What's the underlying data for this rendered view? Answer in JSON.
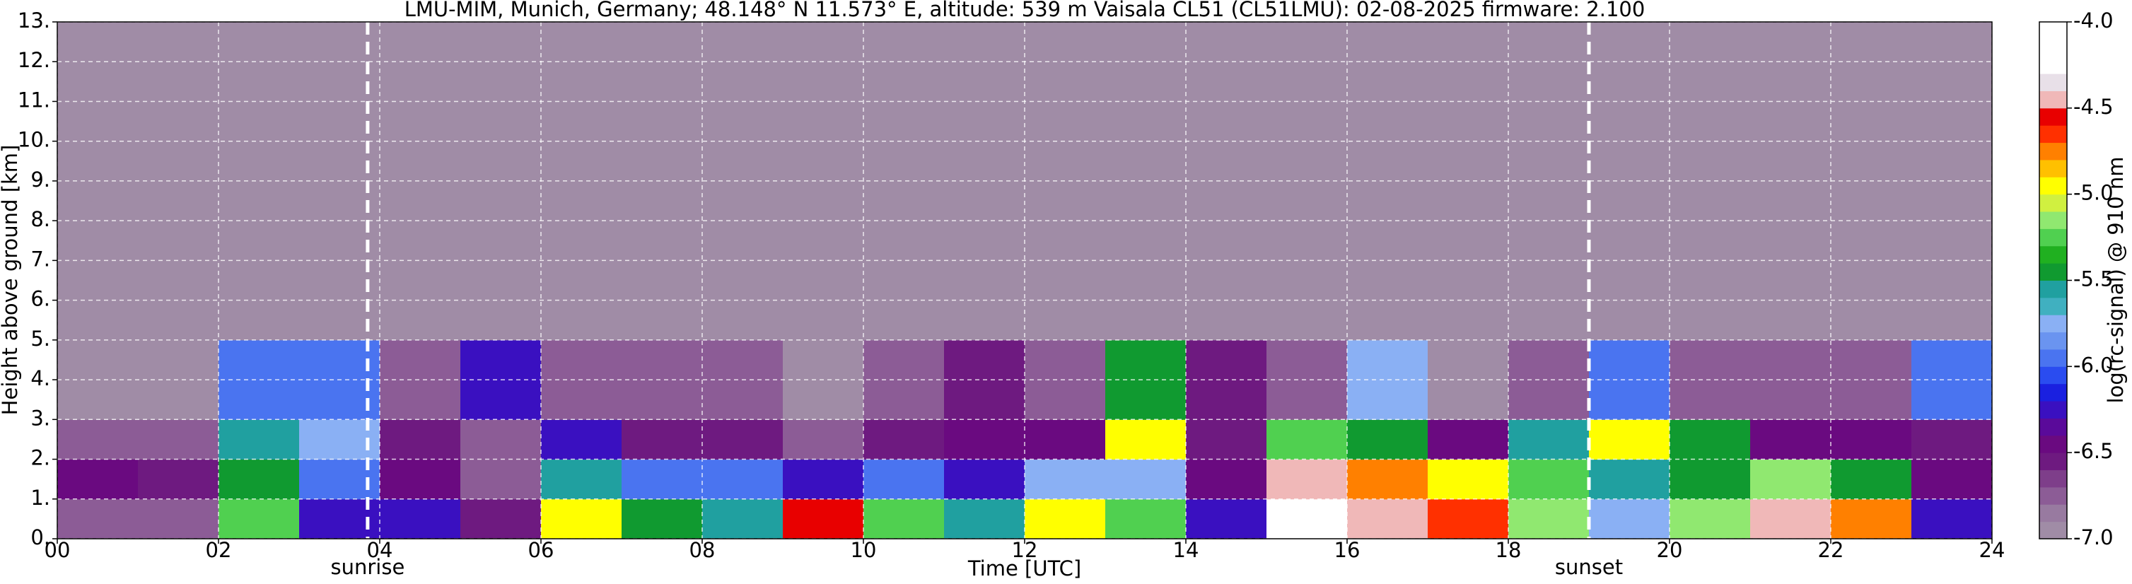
{
  "chart_data": {
    "type": "heatmap",
    "title": "LMU-MIM, Munich, Germany; 48.148° N 11.573° E, altitude: 539 m    Vaisala CL51 (CL51LMU): 02-08-2025    firmware: 2.100",
    "x_label": "Time [UTC]",
    "y_label": "Height above ground [km]",
    "colorbar_label": "log(rc-signal) @ 910 nm",
    "x": [
      0,
      1,
      2,
      3,
      4,
      5,
      6,
      7,
      8,
      9,
      10,
      11,
      12,
      13,
      14,
      15,
      16,
      17,
      18,
      19,
      20,
      21,
      22,
      23,
      24
    ],
    "y": [
      0,
      1,
      2,
      3,
      5,
      13
    ],
    "z": [
      [
        -6.7,
        -6.7,
        -5.3,
        -6.3,
        -6.3,
        -6.6,
        -5.0,
        -5.5,
        -5.6,
        -4.6,
        -5.3,
        -5.6,
        -4.9,
        -5.3,
        -6.3,
        -4.3,
        -4.4,
        -4.7,
        -5.2,
        -5.8,
        -5.2,
        -4.5,
        -4.8,
        -6.2
      ],
      [
        -6.5,
        -6.6,
        -5.5,
        -6.0,
        -6.5,
        -6.8,
        -5.6,
        -6.0,
        -6.0,
        -6.2,
        -6.0,
        -6.2,
        -5.8,
        -5.8,
        -6.5,
        -4.5,
        -4.8,
        -5.0,
        -5.3,
        -5.6,
        -5.5,
        -5.2,
        -5.5,
        -6.4
      ],
      [
        -6.8,
        -6.8,
        -5.6,
        -5.8,
        -6.6,
        -6.7,
        -6.2,
        -6.6,
        -6.6,
        -6.7,
        -6.6,
        -6.5,
        -6.4,
        -5.0,
        -6.6,
        -5.3,
        -5.4,
        -6.5,
        -5.6,
        -4.9,
        -5.4,
        -6.4,
        -6.5,
        -6.6
      ],
      [
        -6.9,
        -6.9,
        -6.0,
        -6.0,
        -6.7,
        -6.2,
        -6.8,
        -6.8,
        -6.8,
        -6.9,
        -6.8,
        -6.6,
        -6.8,
        -5.5,
        -6.6,
        -6.8,
        -5.8,
        -6.9,
        -6.8,
        -6.0,
        -6.7,
        -6.8,
        -6.8,
        -6.0
      ],
      [
        -6.9,
        -6.9,
        -6.9,
        -6.9,
        -6.9,
        -6.9,
        -6.9,
        -6.9,
        -6.9,
        -7.0,
        -6.9,
        -7.0,
        -6.9,
        -6.9,
        -7.0,
        -6.9,
        -6.9,
        -7.0,
        -6.9,
        -6.9,
        -6.9,
        -6.9,
        -7.0,
        -6.9
      ]
    ],
    "xlim": [
      0,
      24
    ],
    "xticks": [
      {
        "value": 0,
        "label": "00"
      },
      {
        "value": 2,
        "label": "02"
      },
      {
        "value": 4,
        "label": "04"
      },
      {
        "value": 6,
        "label": "06"
      },
      {
        "value": 8,
        "label": "08"
      },
      {
        "value": 10,
        "label": "10"
      },
      {
        "value": 12,
        "label": "12"
      },
      {
        "value": 14,
        "label": "14"
      },
      {
        "value": 16,
        "label": "16"
      },
      {
        "value": 18,
        "label": "18"
      },
      {
        "value": 20,
        "label": "20"
      },
      {
        "value": 22,
        "label": "22"
      },
      {
        "value": 24,
        "label": "24"
      }
    ],
    "ylim": [
      0,
      13
    ],
    "yticks": [
      {
        "value": 0,
        "label": "0."
      },
      {
        "value": 1,
        "label": "1."
      },
      {
        "value": 2,
        "label": "2."
      },
      {
        "value": 3,
        "label": "3."
      },
      {
        "value": 4,
        "label": "4."
      },
      {
        "value": 5,
        "label": "5."
      },
      {
        "value": 6,
        "label": "6."
      },
      {
        "value": 7,
        "label": "7."
      },
      {
        "value": 8,
        "label": "8."
      },
      {
        "value": 9,
        "label": "9."
      },
      {
        "value": 10,
        "label": "10."
      },
      {
        "value": 11,
        "label": "11."
      },
      {
        "value": 12,
        "label": "12."
      },
      {
        "value": 13,
        "label": "13."
      }
    ],
    "clim": [
      -7,
      -4
    ],
    "cticks": [
      {
        "value": -7,
        "label": "-7.0"
      },
      {
        "value": -6.5,
        "label": "-6.5"
      },
      {
        "value": -6,
        "label": "-6.0"
      },
      {
        "value": -5.5,
        "label": "-5.5"
      },
      {
        "value": -5,
        "label": "-5.0"
      },
      {
        "value": -4.5,
        "label": "-4.5"
      },
      {
        "value": -4,
        "label": "-4.0"
      }
    ],
    "colors": [
      "#a08ca6",
      "#987aa0",
      "#8c5c96",
      "#7e3e8a",
      "#6e1a80",
      "#6a0a80",
      "#5a0a9a",
      "#3a10c0",
      "#1a20e0",
      "#2a4cf0",
      "#4a74f0",
      "#6a94f0",
      "#8ab0f4",
      "#40b0c0",
      "#20a0a0",
      "#109a30",
      "#20b020",
      "#50d050",
      "#90e870",
      "#d0f040",
      "#ffff00",
      "#ffc000",
      "#ff8000",
      "#ff3000",
      "#e80000",
      "#f0b8b8",
      "#e8e0e8",
      "#ffffff",
      "#ffffff",
      "#ffffff"
    ],
    "grid": true,
    "annotations": [
      {
        "x": 3.85,
        "label": "sunrise"
      },
      {
        "x": 19.0,
        "label": "sunset"
      }
    ]
  }
}
